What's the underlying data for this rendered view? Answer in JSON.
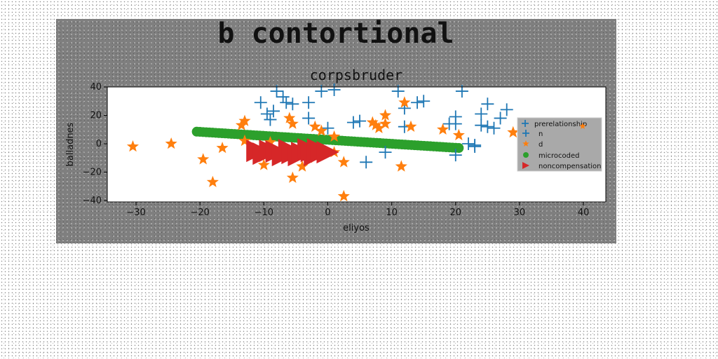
{
  "suptitle": "b contortional",
  "chart_data": {
    "type": "scatter",
    "title": "corpsbruder",
    "xlabel": "eliyos",
    "ylabel": "balladnes",
    "xlim": [
      -34.5,
      43.5
    ],
    "ylim": [
      -41,
      40
    ],
    "xticks": [
      -30,
      -20,
      -10,
      0,
      10,
      20,
      30,
      40
    ],
    "yticks": [
      -40,
      -20,
      0,
      20,
      40
    ],
    "grid": false,
    "legend": {
      "placement": "right",
      "title": "prerelationship",
      "title_marker_label": "n"
    },
    "series": [
      {
        "name": "n",
        "marker": "plus",
        "color": "#1f77b4",
        "points": [
          [
            -10.5,
            29
          ],
          [
            -9.5,
            21
          ],
          [
            -9,
            17
          ],
          [
            -8.5,
            23
          ],
          [
            -8,
            37
          ],
          [
            -7,
            33
          ],
          [
            -6.5,
            29
          ],
          [
            -5.5,
            28
          ],
          [
            -3,
            29
          ],
          [
            -3,
            18
          ],
          [
            -1,
            37
          ],
          [
            1,
            38
          ],
          [
            0,
            11
          ],
          [
            4,
            15
          ],
          [
            5,
            16
          ],
          [
            6,
            -13
          ],
          [
            9,
            -6
          ],
          [
            11,
            37
          ],
          [
            12,
            25
          ],
          [
            12,
            12
          ],
          [
            14,
            29
          ],
          [
            15,
            30
          ],
          [
            19,
            14
          ],
          [
            20,
            19
          ],
          [
            20,
            14
          ],
          [
            21,
            37
          ],
          [
            22,
            0
          ],
          [
            23,
            -1
          ],
          [
            23,
            -2
          ],
          [
            24,
            21
          ],
          [
            24,
            13
          ],
          [
            25,
            28
          ],
          [
            25,
            12
          ],
          [
            26,
            11
          ],
          [
            27,
            18
          ],
          [
            28,
            24
          ],
          [
            20,
            -8
          ]
        ]
      },
      {
        "name": "d",
        "marker": "star",
        "color": "#ff7f0e",
        "points": [
          [
            -30.5,
            -2
          ],
          [
            -24.5,
            0
          ],
          [
            -19.5,
            -11
          ],
          [
            -18,
            -27
          ],
          [
            -16.5,
            -3
          ],
          [
            -13.5,
            13
          ],
          [
            -13,
            16
          ],
          [
            -13,
            2
          ],
          [
            -11.5,
            -4
          ],
          [
            -10,
            -15
          ],
          [
            -9,
            1
          ],
          [
            -6,
            18
          ],
          [
            -5.5,
            14
          ],
          [
            -5.5,
            -24
          ],
          [
            -4,
            -16
          ],
          [
            -3,
            -10
          ],
          [
            -2,
            12
          ],
          [
            -1,
            9
          ],
          [
            1,
            5
          ],
          [
            1,
            -6
          ],
          [
            2.5,
            -13
          ],
          [
            2.5,
            -37
          ],
          [
            7,
            15
          ],
          [
            7.5,
            13
          ],
          [
            8,
            11
          ],
          [
            9,
            20
          ],
          [
            9,
            14
          ],
          [
            11.5,
            -16
          ],
          [
            12,
            29
          ],
          [
            13,
            12
          ],
          [
            18,
            10
          ],
          [
            20.5,
            6
          ],
          [
            29,
            8
          ]
        ]
      },
      {
        "name": "microcoded",
        "marker": "circle",
        "color": "#2ca02c",
        "line_from": [
          -20.5,
          8.5
        ],
        "line_to": [
          20.5,
          -3
        ],
        "count": 84
      },
      {
        "name": "noncompensation",
        "marker": "triangle-right",
        "color": "#d62728",
        "points": [
          [
            -11,
            -5
          ],
          [
            -10,
            -7
          ],
          [
            -9,
            -5
          ],
          [
            -8,
            -5.5
          ],
          [
            -7,
            -8
          ],
          [
            -6,
            -4.5
          ],
          [
            -5.5,
            -6.5
          ],
          [
            -4.5,
            -8
          ],
          [
            -4,
            -6.5
          ],
          [
            -3,
            -4
          ],
          [
            -2.5,
            -5
          ],
          [
            -2,
            -8
          ],
          [
            -1.5,
            -4
          ],
          [
            -1,
            -5.5
          ],
          [
            0,
            -6
          ]
        ]
      }
    ]
  }
}
